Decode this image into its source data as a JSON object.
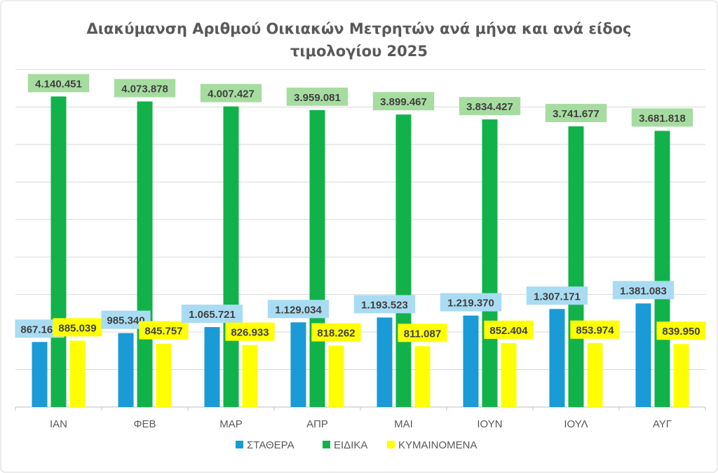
{
  "chart_data": {
    "type": "bar",
    "title": "Διακύμανση Αριθμού Οικιακών Μετρητών ανά μήνα και ανά είδος",
    "title_line2": "τιμολογίου 2025",
    "xlabel": "",
    "ylabel": "",
    "ylim": [
      0,
      4500000
    ],
    "grid": true,
    "legend_position": "bottom",
    "categories": [
      "ΙΑΝ",
      "ΦΕΒ",
      "ΜΑΡ",
      "ΑΠΡ",
      "ΜΑΙ",
      "ΙΟΥΝ",
      "ΙΟΥΛ",
      "ΑΥΓ"
    ],
    "series": [
      {
        "name": "ΣΤΑΘΕΡΑ",
        "color": "#1a9ad6",
        "label_bg": "#a9dcf2",
        "values": [
          867161,
          985340,
          1065721,
          1129034,
          1193523,
          1219370,
          1307171,
          1381083
        ],
        "labels": [
          "867.161",
          "985.340",
          "1.065.721",
          "1.129.034",
          "1.193.523",
          "1.219.370",
          "1.307.171",
          "1.381.083"
        ]
      },
      {
        "name": "ΕΙΔΙΚΑ",
        "color": "#12b24b",
        "label_bg": "#a6dca0",
        "values": [
          4140451,
          4073878,
          4007427,
          3959081,
          3899467,
          3834427,
          3741677,
          3681818
        ],
        "labels": [
          "4.140.451",
          "4.073.878",
          "4.007.427",
          "3.959.081",
          "3.899.467",
          "3.834.427",
          "3.741.677",
          "3.681.818"
        ]
      },
      {
        "name": "ΚΥΜΑΙΝΟΜΕΝΑ",
        "color": "#ffff00",
        "label_bg": "#ffff00",
        "values": [
          885039,
          845757,
          826933,
          818262,
          811087,
          852404,
          853974,
          839950
        ],
        "labels": [
          "885.039",
          "845.757",
          "826.933",
          "818.262",
          "811.087",
          "852.404",
          "853.974",
          "839.950"
        ]
      }
    ]
  }
}
